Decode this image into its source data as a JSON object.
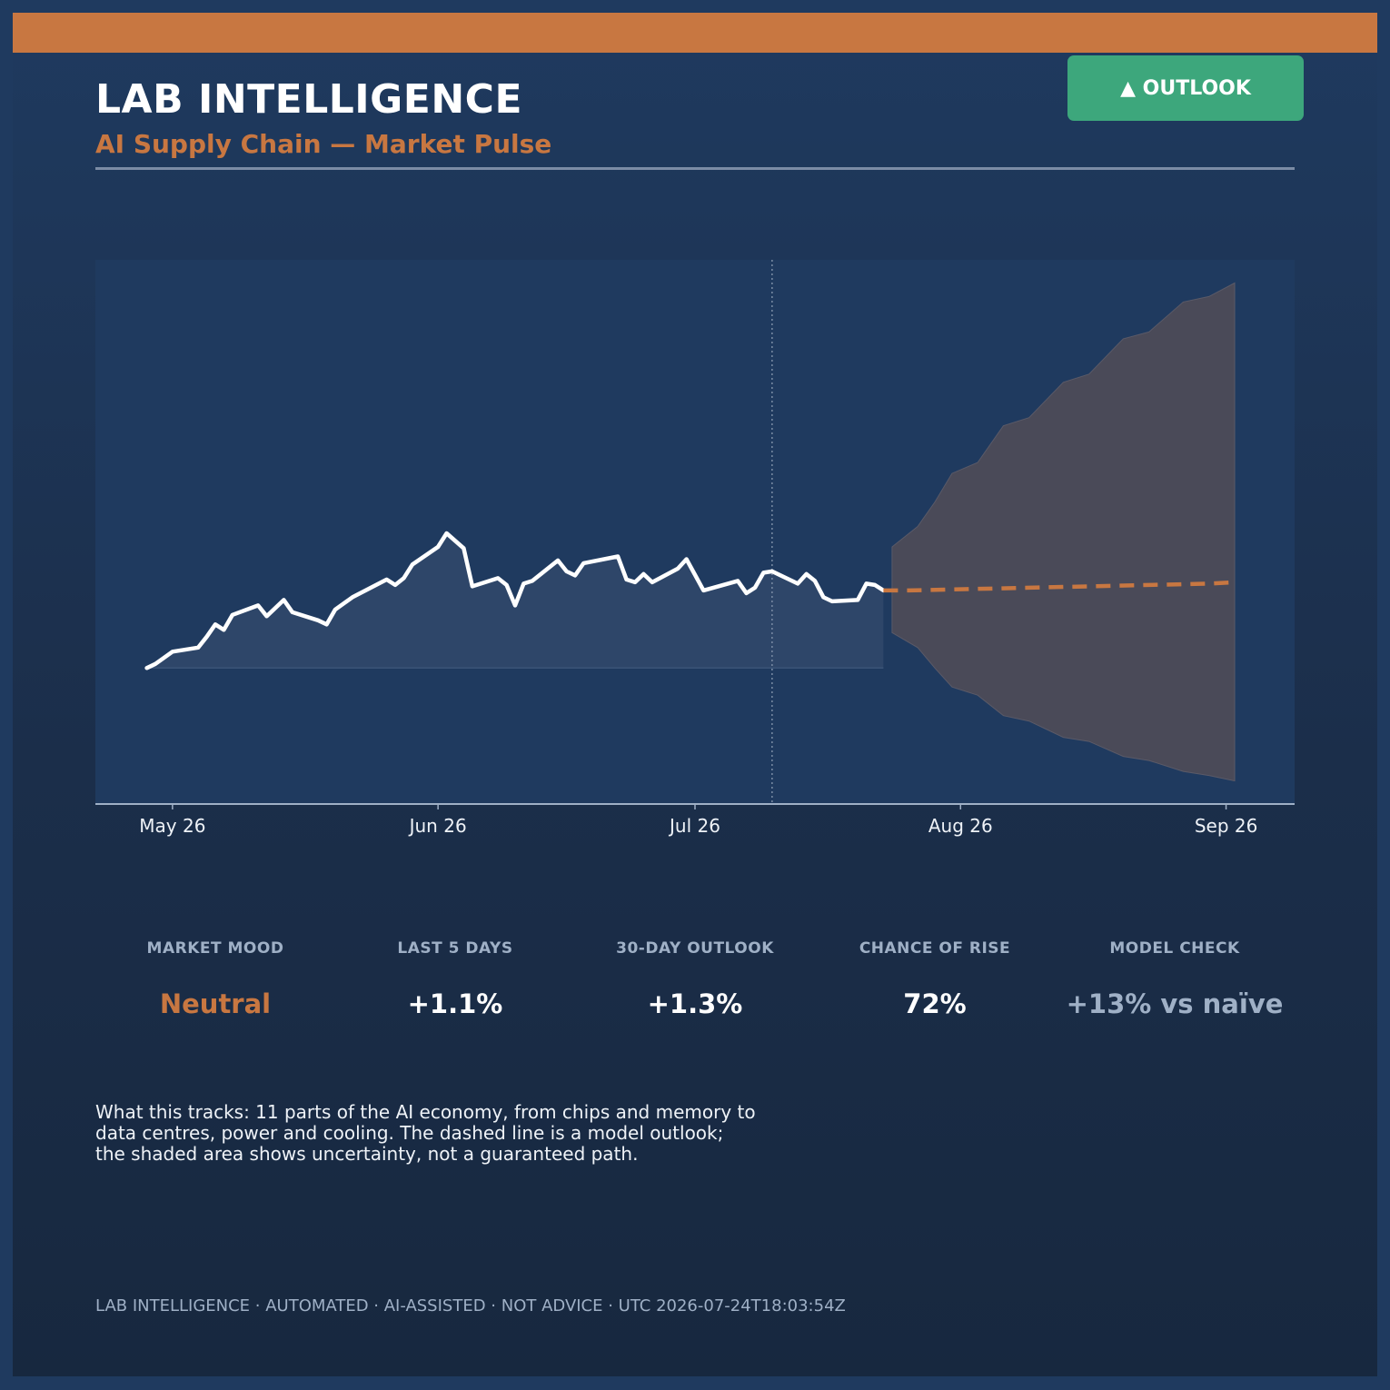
{
  "header": {
    "title": "LAB INTELLIGENCE",
    "subtitle": "AI Supply Chain — Market Pulse",
    "badge": "▲ OUTLOOK"
  },
  "colors": {
    "background": "#1f3a5f",
    "accent": "#c87741",
    "badge": "#3da77c",
    "history_line": "#ffffff",
    "forecast_line": "#c87741",
    "band": "#4a4a58",
    "muted_text": "#9fb0c6"
  },
  "chart_data": {
    "type": "line",
    "title": "",
    "xlabel": "",
    "ylabel": "",
    "x_tick_labels": [
      "May 26",
      "Jun 26",
      "Jul 26",
      "Aug 26",
      "Sep 26"
    ],
    "x_ticks": [
      "2026-05-26",
      "2026-06-26",
      "2026-07-26",
      "2026-08-26",
      "2026-09-26"
    ],
    "xlim": [
      "2026-05-17",
      "2026-10-04"
    ],
    "ylim": [
      -10,
      30
    ],
    "y_axis_labels_shown": false,
    "grid": false,
    "forecast_start": "2026-08-04",
    "series": [
      {
        "role": "history",
        "style": "solid",
        "fill_to_baseline": true,
        "points": [
          [
            "2026-05-23",
            0.0
          ],
          [
            "2026-05-24",
            0.3
          ],
          [
            "2026-05-26",
            1.2
          ],
          [
            "2026-05-29",
            1.5
          ],
          [
            "2026-05-30",
            2.3
          ],
          [
            "2026-05-31",
            3.2
          ],
          [
            "2026-06-01",
            2.8
          ],
          [
            "2026-06-02",
            3.9
          ],
          [
            "2026-06-05",
            4.6
          ],
          [
            "2026-06-06",
            3.8
          ],
          [
            "2026-06-08",
            5.0
          ],
          [
            "2026-06-09",
            4.1
          ],
          [
            "2026-06-12",
            3.5
          ],
          [
            "2026-06-13",
            3.2
          ],
          [
            "2026-06-14",
            4.3
          ],
          [
            "2026-06-16",
            5.2
          ],
          [
            "2026-06-20",
            6.5
          ],
          [
            "2026-06-21",
            6.1
          ],
          [
            "2026-06-22",
            6.6
          ],
          [
            "2026-06-23",
            7.6
          ],
          [
            "2026-06-26",
            8.9
          ],
          [
            "2026-06-27",
            9.9
          ],
          [
            "2026-06-29",
            8.8
          ],
          [
            "2026-06-30",
            6.0
          ],
          [
            "2026-07-03",
            6.6
          ],
          [
            "2026-07-04",
            6.1
          ],
          [
            "2026-07-05",
            4.6
          ],
          [
            "2026-07-06",
            6.2
          ],
          [
            "2026-07-07",
            6.4
          ],
          [
            "2026-07-10",
            7.9
          ],
          [
            "2026-07-11",
            7.1
          ],
          [
            "2026-07-12",
            6.8
          ],
          [
            "2026-07-13",
            7.7
          ],
          [
            "2026-07-17",
            8.2
          ],
          [
            "2026-07-18",
            6.5
          ],
          [
            "2026-07-19",
            6.3
          ],
          [
            "2026-07-20",
            6.9
          ],
          [
            "2026-07-21",
            6.3
          ],
          [
            "2026-07-24",
            7.3
          ],
          [
            "2026-07-25",
            8.0
          ],
          [
            "2026-07-27",
            5.7
          ],
          [
            "2026-07-31",
            6.4
          ],
          [
            "2026-08-01",
            5.5
          ],
          [
            "2026-08-02",
            5.9
          ],
          [
            "2026-08-03",
            7.0
          ],
          [
            "2026-08-04",
            7.1
          ],
          [
            "2026-08-06",
            6.5
          ],
          [
            "2026-08-07",
            6.2
          ],
          [
            "2026-08-08",
            6.9
          ],
          [
            "2026-08-09",
            6.4
          ],
          [
            "2026-08-10",
            5.2
          ],
          [
            "2026-08-11",
            4.9
          ],
          [
            "2026-08-14",
            5.0
          ],
          [
            "2026-08-15",
            6.2
          ],
          [
            "2026-08-16",
            6.1
          ],
          [
            "2026-08-17",
            5.7
          ]
        ]
      },
      {
        "role": "forecast",
        "style": "dashed",
        "points": [
          [
            "2026-08-17",
            5.7
          ],
          [
            "2026-08-20",
            5.7
          ],
          [
            "2026-08-27",
            5.8
          ],
          [
            "2026-09-03",
            5.9
          ],
          [
            "2026-09-10",
            6.0
          ],
          [
            "2026-09-17",
            6.1
          ],
          [
            "2026-09-24",
            6.2
          ],
          [
            "2026-09-27",
            6.3
          ]
        ]
      },
      {
        "role": "uncertainty-band",
        "style": "shaded",
        "points": [
          [
            "2026-08-18",
            2.6,
            8.9
          ],
          [
            "2026-08-21",
            1.5,
            10.4
          ],
          [
            "2026-08-23",
            0.0,
            12.2
          ],
          [
            "2026-08-25",
            -1.4,
            14.3
          ],
          [
            "2026-08-28",
            -2.0,
            15.1
          ],
          [
            "2026-08-31",
            -3.5,
            17.8
          ],
          [
            "2026-09-03",
            -3.9,
            18.4
          ],
          [
            "2026-09-07",
            -5.1,
            21.0
          ],
          [
            "2026-09-10",
            -5.4,
            21.6
          ],
          [
            "2026-09-14",
            -6.5,
            24.2
          ],
          [
            "2026-09-17",
            -6.8,
            24.7
          ],
          [
            "2026-09-21",
            -7.6,
            26.9
          ],
          [
            "2026-09-24",
            -7.9,
            27.3
          ],
          [
            "2026-09-27",
            -8.3,
            28.3
          ]
        ]
      }
    ]
  },
  "metrics": [
    {
      "label": "MARKET MOOD",
      "value": "Neutral"
    },
    {
      "label": "LAST 5 DAYS",
      "value": "+1.1%"
    },
    {
      "label": "30-DAY OUTLOOK",
      "value": "+1.3%"
    },
    {
      "label": "CHANCE OF RISE",
      "value": "72%"
    },
    {
      "label": "MODEL CHECK",
      "value": "+13% vs naïve"
    }
  ],
  "description": {
    "line1": "What this tracks: 11 parts of the AI economy, from chips and memory to",
    "line2": "data centres, power and cooling. The dashed line is a model outlook;",
    "line3": "the shaded area shows uncertainty, not a guaranteed path."
  },
  "footer": "LAB INTELLIGENCE · AUTOMATED · AI-ASSISTED · NOT ADVICE · UTC 2026-07-24T18:03:54Z"
}
